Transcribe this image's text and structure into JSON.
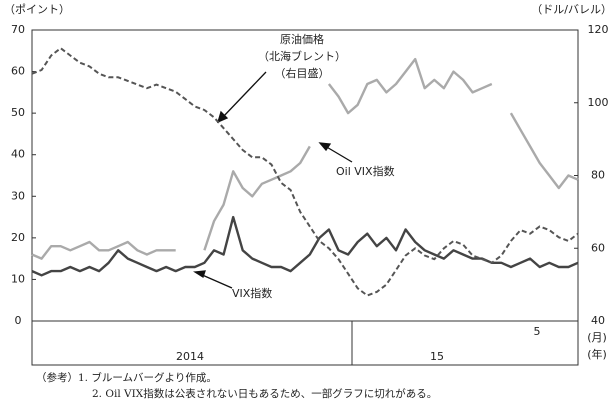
{
  "chart_data": {
    "type": "line",
    "y_unit": "（ポイント）",
    "y2_unit": "（ドル/バレル）",
    "ylim": [
      0,
      70
    ],
    "yticks": [
      0,
      10,
      20,
      30,
      40,
      50,
      60,
      70
    ],
    "y2lim": [
      40,
      120
    ],
    "y2ticks": [
      40,
      60,
      80,
      100,
      120
    ],
    "year_labels": [
      "2014",
      "15"
    ],
    "month_label": "5",
    "month_unit": "(月)",
    "year_unit": "(年)",
    "series": [
      {
        "name": "VIX指数",
        "color": "#444444",
        "style": "solid",
        "values": [
          12,
          11,
          12,
          12,
          13,
          12,
          13,
          12,
          14,
          17,
          15,
          14,
          13,
          12,
          13,
          12,
          13,
          13,
          14,
          17,
          16,
          25,
          17,
          15,
          14,
          13,
          13,
          12,
          14,
          16,
          20,
          22,
          17,
          16,
          19,
          21,
          18,
          20,
          17,
          22,
          19,
          17,
          16,
          15,
          17,
          16,
          15,
          15,
          14,
          14,
          13,
          14,
          15,
          13,
          14,
          13,
          13,
          14
        ]
      },
      {
        "name": "Oil VIX指数",
        "color": "#aaaaaa",
        "style": "solid",
        "values": [
          16,
          15,
          18,
          18,
          17,
          18,
          19,
          17,
          17,
          18,
          19,
          17,
          16,
          17,
          17,
          17,
          null,
          null,
          17,
          24,
          28,
          36,
          32,
          30,
          33,
          34,
          35,
          36,
          38,
          42,
          null,
          57,
          54,
          50,
          52,
          57,
          58,
          55,
          57,
          60,
          63,
          56,
          58,
          56,
          60,
          58,
          55,
          56,
          57,
          null,
          50,
          46,
          42,
          38,
          35,
          32,
          35,
          34
        ]
      },
      {
        "name": "原油価格",
        "annotations": [
          "（北海ブレント）",
          "（右目盛）"
        ],
        "color": "#555555",
        "style": "dashed",
        "axis": "y2",
        "values": [
          108,
          109,
          113,
          115,
          113,
          111,
          110,
          108,
          107,
          107,
          106,
          105,
          104,
          105,
          104,
          103,
          101,
          99,
          98,
          96,
          93,
          90,
          87,
          85,
          85,
          83,
          78,
          76,
          70,
          66,
          62,
          60,
          57,
          53,
          49,
          47,
          48,
          50,
          54,
          58,
          60,
          58,
          57,
          60,
          62,
          61,
          58,
          57,
          56,
          58,
          62,
          65,
          64,
          66,
          65,
          63,
          62,
          64
        ]
      }
    ],
    "notes": [
      "（参考）1. ブルームバーグより作成。",
      "2.  Oil VIX指数は公表されない日もあるため、一部グラフに切れがある。"
    ]
  }
}
